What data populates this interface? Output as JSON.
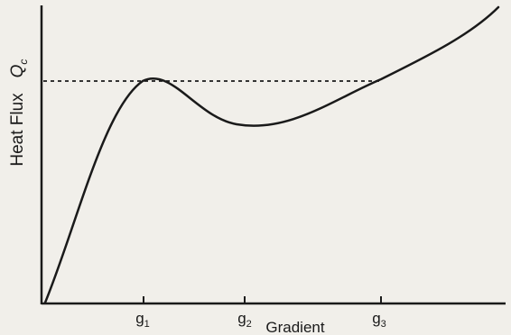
{
  "y_axis": {
    "label": "Heat Flux"
  },
  "x_axis": {
    "label": "Gradient"
  },
  "threshold": {
    "label": "Q",
    "subscript": "c"
  },
  "ticks": [
    {
      "base": "g",
      "sub": "1"
    },
    {
      "base": "g",
      "sub": "2"
    },
    {
      "base": "g",
      "sub": "3"
    }
  ],
  "colors": {
    "ink": "#1a1a1a",
    "paper": "#f1efea"
  }
}
